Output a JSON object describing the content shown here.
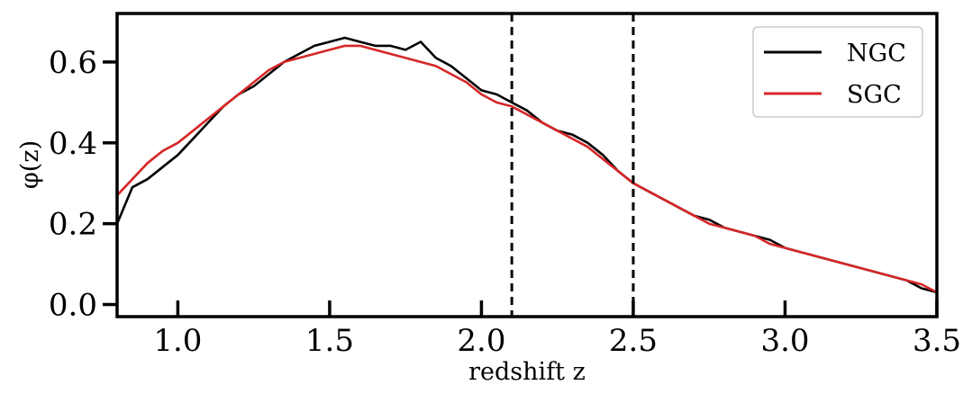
{
  "chart_data": {
    "type": "line",
    "xlabel": "redshift z",
    "ylabel": "φ(z)",
    "xlim": [
      0.8,
      3.5
    ],
    "ylim": [
      -0.03,
      0.72
    ],
    "xticks": [
      "1.0",
      "1.5",
      "2.0",
      "2.5",
      "3.0",
      "3.5"
    ],
    "yticks": [
      "0.0",
      "0.2",
      "0.4",
      "0.6"
    ],
    "vlines": [
      2.1,
      2.5
    ],
    "legend_position": "top-right",
    "series": [
      {
        "name": "NGC",
        "color": "#000000",
        "x": [
          0.8,
          0.85,
          0.9,
          0.95,
          1.0,
          1.05,
          1.1,
          1.15,
          1.2,
          1.25,
          1.3,
          1.35,
          1.4,
          1.45,
          1.5,
          1.55,
          1.6,
          1.65,
          1.7,
          1.75,
          1.8,
          1.85,
          1.9,
          1.95,
          2.0,
          2.05,
          2.1,
          2.15,
          2.2,
          2.25,
          2.3,
          2.35,
          2.4,
          2.45,
          2.5,
          2.55,
          2.6,
          2.65,
          2.7,
          2.75,
          2.8,
          2.85,
          2.9,
          2.95,
          3.0,
          3.05,
          3.1,
          3.15,
          3.2,
          3.25,
          3.3,
          3.35,
          3.4,
          3.45,
          3.5
        ],
        "y": [
          0.2,
          0.29,
          0.31,
          0.34,
          0.37,
          0.41,
          0.45,
          0.49,
          0.52,
          0.54,
          0.57,
          0.6,
          0.62,
          0.64,
          0.65,
          0.66,
          0.65,
          0.64,
          0.64,
          0.63,
          0.65,
          0.61,
          0.59,
          0.56,
          0.53,
          0.52,
          0.5,
          0.48,
          0.45,
          0.43,
          0.42,
          0.4,
          0.37,
          0.33,
          0.3,
          0.28,
          0.26,
          0.24,
          0.22,
          0.21,
          0.19,
          0.18,
          0.17,
          0.16,
          0.14,
          0.13,
          0.12,
          0.11,
          0.1,
          0.09,
          0.08,
          0.07,
          0.06,
          0.04,
          0.03
        ]
      },
      {
        "name": "SGC",
        "color": "#d62728",
        "x": [
          0.8,
          0.85,
          0.9,
          0.95,
          1.0,
          1.05,
          1.1,
          1.15,
          1.2,
          1.25,
          1.3,
          1.35,
          1.4,
          1.45,
          1.5,
          1.55,
          1.6,
          1.65,
          1.7,
          1.75,
          1.8,
          1.85,
          1.9,
          1.95,
          2.0,
          2.05,
          2.1,
          2.15,
          2.2,
          2.25,
          2.3,
          2.35,
          2.4,
          2.45,
          2.5,
          2.55,
          2.6,
          2.65,
          2.7,
          2.75,
          2.8,
          2.85,
          2.9,
          2.95,
          3.0,
          3.05,
          3.1,
          3.15,
          3.2,
          3.25,
          3.3,
          3.35,
          3.4,
          3.45,
          3.5
        ],
        "y": [
          0.27,
          0.31,
          0.35,
          0.38,
          0.4,
          0.43,
          0.46,
          0.49,
          0.52,
          0.55,
          0.58,
          0.6,
          0.61,
          0.62,
          0.63,
          0.64,
          0.64,
          0.63,
          0.62,
          0.61,
          0.6,
          0.59,
          0.57,
          0.55,
          0.52,
          0.5,
          0.49,
          0.47,
          0.45,
          0.43,
          0.41,
          0.39,
          0.36,
          0.33,
          0.3,
          0.28,
          0.26,
          0.24,
          0.22,
          0.2,
          0.19,
          0.18,
          0.17,
          0.15,
          0.14,
          0.13,
          0.12,
          0.11,
          0.1,
          0.09,
          0.08,
          0.07,
          0.06,
          0.05,
          0.03
        ]
      }
    ]
  }
}
